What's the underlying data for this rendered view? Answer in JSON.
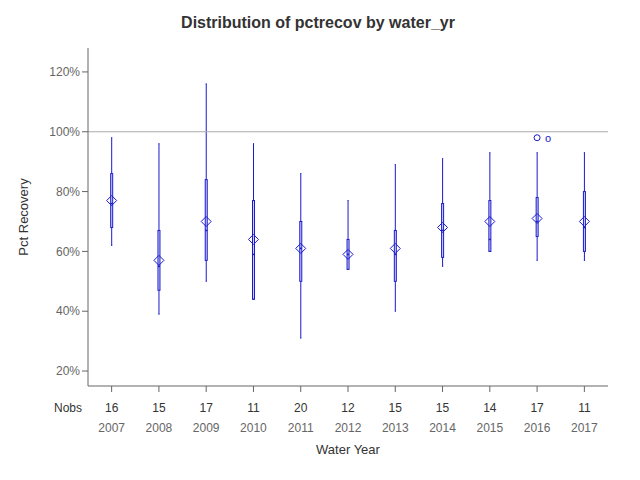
{
  "chart_data": {
    "type": "box",
    "title": "Distribution of pctrecov by water_yr",
    "xlabel": "Water Year",
    "ylabel": "Pct Recovery",
    "categories": [
      2007,
      2008,
      2009,
      2010,
      2011,
      2012,
      2013,
      2014,
      2015,
      2016,
      2017
    ],
    "nobs_label": "Nobs",
    "nobs": [
      16,
      15,
      17,
      11,
      20,
      12,
      15,
      15,
      14,
      17,
      11
    ],
    "boxes": [
      {
        "q1": 68,
        "median": 76,
        "q3": 86,
        "whislo": 62,
        "whishi": 98,
        "mean": 77,
        "fliers": []
      },
      {
        "q1": 47,
        "median": 55,
        "q3": 67,
        "whislo": 39,
        "whishi": 96,
        "mean": 57,
        "fliers": []
      },
      {
        "q1": 57,
        "median": 67,
        "q3": 84,
        "whislo": 50,
        "whishi": 116,
        "mean": 70,
        "fliers": []
      },
      {
        "q1": 44,
        "median": 59,
        "q3": 77,
        "whislo": 44,
        "whishi": 96,
        "mean": 64,
        "fliers": []
      },
      {
        "q1": 50,
        "median": 61,
        "q3": 70,
        "whislo": 31,
        "whishi": 86,
        "mean": 61,
        "fliers": []
      },
      {
        "q1": 54,
        "median": 59,
        "q3": 64,
        "whislo": 54,
        "whishi": 77,
        "mean": 59,
        "fliers": []
      },
      {
        "q1": 50,
        "median": 59,
        "q3": 67,
        "whislo": 40,
        "whishi": 89,
        "mean": 61,
        "fliers": []
      },
      {
        "q1": 58,
        "median": 67,
        "q3": 76,
        "whislo": 55,
        "whishi": 91,
        "mean": 68,
        "fliers": []
      },
      {
        "q1": 60,
        "median": 64,
        "q3": 77,
        "whislo": 60,
        "whishi": 93,
        "mean": 70,
        "fliers": []
      },
      {
        "q1": 65,
        "median": 70,
        "q3": 78,
        "whislo": 57,
        "whishi": 93,
        "mean": 71,
        "fliers": [
          98
        ]
      },
      {
        "q1": 60,
        "median": 68,
        "q3": 80,
        "whislo": 57,
        "whishi": 93,
        "mean": 70,
        "fliers": []
      }
    ],
    "ylim": [
      15,
      128
    ],
    "yticks": [
      {
        "value": 20,
        "label": "20%"
      },
      {
        "value": 40,
        "label": "40%"
      },
      {
        "value": 60,
        "label": "60%"
      },
      {
        "value": 80,
        "label": "80%"
      },
      {
        "value": 100,
        "label": "100%"
      },
      {
        "value": 120,
        "label": "120%"
      }
    ],
    "reference_line": {
      "y": 100,
      "color": "#aaaaaa"
    },
    "annotations": [
      {
        "x": 2016,
        "y": 98,
        "text": "o"
      }
    ],
    "color": "#1a1acd",
    "grid": false
  }
}
